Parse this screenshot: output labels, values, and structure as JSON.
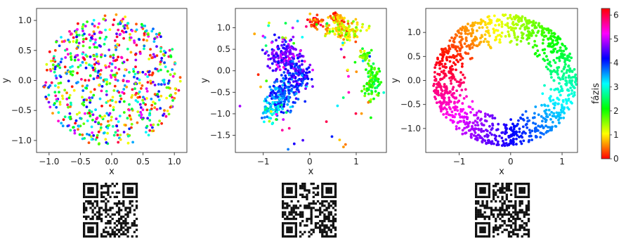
{
  "chart_data": [
    {
      "type": "scatter",
      "xlabel": "x",
      "ylabel": "y",
      "xlim": [
        -1.2,
        1.2
      ],
      "ylim": [
        -1.2,
        1.2
      ],
      "xticks": [
        -1.0,
        -0.5,
        0.0,
        0.5,
        1.0
      ],
      "yticks": [
        -1.0,
        -0.5,
        0.0,
        0.5,
        1.0
      ],
      "xtick_labels": [
        "−1.0",
        "−0.5",
        "0.0",
        "0.5",
        "1.0"
      ],
      "ytick_labels": [
        "−1.0",
        "−0.5",
        "0.0",
        "0.5",
        "1.0"
      ],
      "point_count": 700,
      "shape": "filled unit disk of radius 1.1 with phases randomly distributed (uncorrelated)",
      "grid": false
    },
    {
      "type": "scatter",
      "xlabel": "x",
      "ylabel": "y",
      "xlim": [
        -1.6,
        1.65
      ],
      "ylim": [
        -1.9,
        1.45
      ],
      "xticks": [
        -1,
        0,
        1
      ],
      "yticks": [
        -1.5,
        -1.0,
        -0.5,
        0.0,
        0.5,
        1.0
      ],
      "xtick_labels": [
        "−1",
        "0",
        "1"
      ],
      "ytick_labels": [
        "−1.5",
        "−1.0",
        "−0.5",
        "0.0",
        "0.5",
        "1.0"
      ],
      "point_count": 900,
      "shape": "distorted spiral/arc with clustered phases and scattered stray points",
      "grid": false
    },
    {
      "type": "scatter",
      "xlabel": "x",
      "ylabel": "y",
      "xlim": [
        -1.65,
        1.3
      ],
      "ylim": [
        -1.5,
        1.5
      ],
      "xticks": [
        -1,
        0,
        1
      ],
      "yticks": [
        -1.0,
        -0.5,
        0.0,
        0.5,
        1.0
      ],
      "xtick_labels": [
        "−1",
        "0",
        "1"
      ],
      "ytick_labels": [
        "−1.0",
        "−0.5",
        "0.0",
        "0.5",
        "1.0"
      ],
      "point_count": 1100,
      "shape": "ring (inner radius ~0.7, outer ~1.4) centered near (−0.1, 0), phase increasing with angle",
      "grid": false
    }
  ],
  "colorbar": {
    "label": "fázis",
    "range": [
      0,
      6.28
    ],
    "ticks": [
      0,
      1,
      2,
      3,
      4,
      5,
      6
    ],
    "tick_labels": [
      "0",
      "1",
      "2",
      "3",
      "4",
      "5",
      "6"
    ],
    "colormap": "hsv"
  },
  "qr_codes": [
    {
      "icon": "qr-code-icon"
    },
    {
      "icon": "qr-code-icon"
    },
    {
      "icon": "qr-code-icon"
    }
  ]
}
